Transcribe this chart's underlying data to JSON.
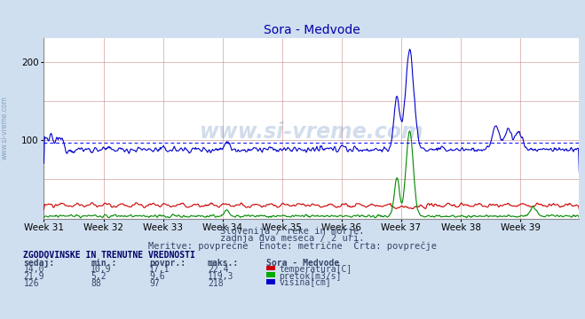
{
  "title": "Sora - Medvode",
  "background_color": "#d0dff0",
  "plot_bg_color": "#ffffff",
  "subtitle1": "Slovenija / reke in morje.",
  "subtitle2": "zadnja dva meseca / 2 uri.",
  "subtitle3": "Meritve: povprečne  Enote: metrične  Črta: povprečje",
  "table_header": "ZGODOVINSKE IN TRENUTNE VREDNOSTI",
  "col_headers": [
    "sedaj:",
    "min.:",
    "povpr.:",
    "maks.:",
    "Sora - Medvode"
  ],
  "rows": [
    {
      "sedaj": "14,0",
      "min": "10,9",
      "povpr": "17,1",
      "maks": "22,4",
      "label": "temperatura[C]",
      "color": "#cc0000"
    },
    {
      "sedaj": "21,9",
      "min": "5,2",
      "povpr": "9,6",
      "maks": "119,3",
      "label": "pretok[m3/s]",
      "color": "#00aa00"
    },
    {
      "sedaj": "126",
      "min": "88",
      "povpr": "97",
      "maks": "218",
      "label": "višina[cm]",
      "color": "#0000cc"
    }
  ],
  "x_ticks": [
    "Week 31",
    "Week 32",
    "Week 33",
    "Week 34",
    "Week 35",
    "Week 36",
    "Week 37",
    "Week 38",
    "Week 39"
  ],
  "x_tick_positions": [
    0,
    84,
    168,
    252,
    336,
    420,
    504,
    588,
    672
  ],
  "ylim": [
    0,
    230
  ],
  "yticks": [
    100,
    200
  ],
  "n_points": 756,
  "avg_line_value": 97,
  "watermark_text": "www.si-vreme.com",
  "sidebar_text": "www.si-vreme.com"
}
